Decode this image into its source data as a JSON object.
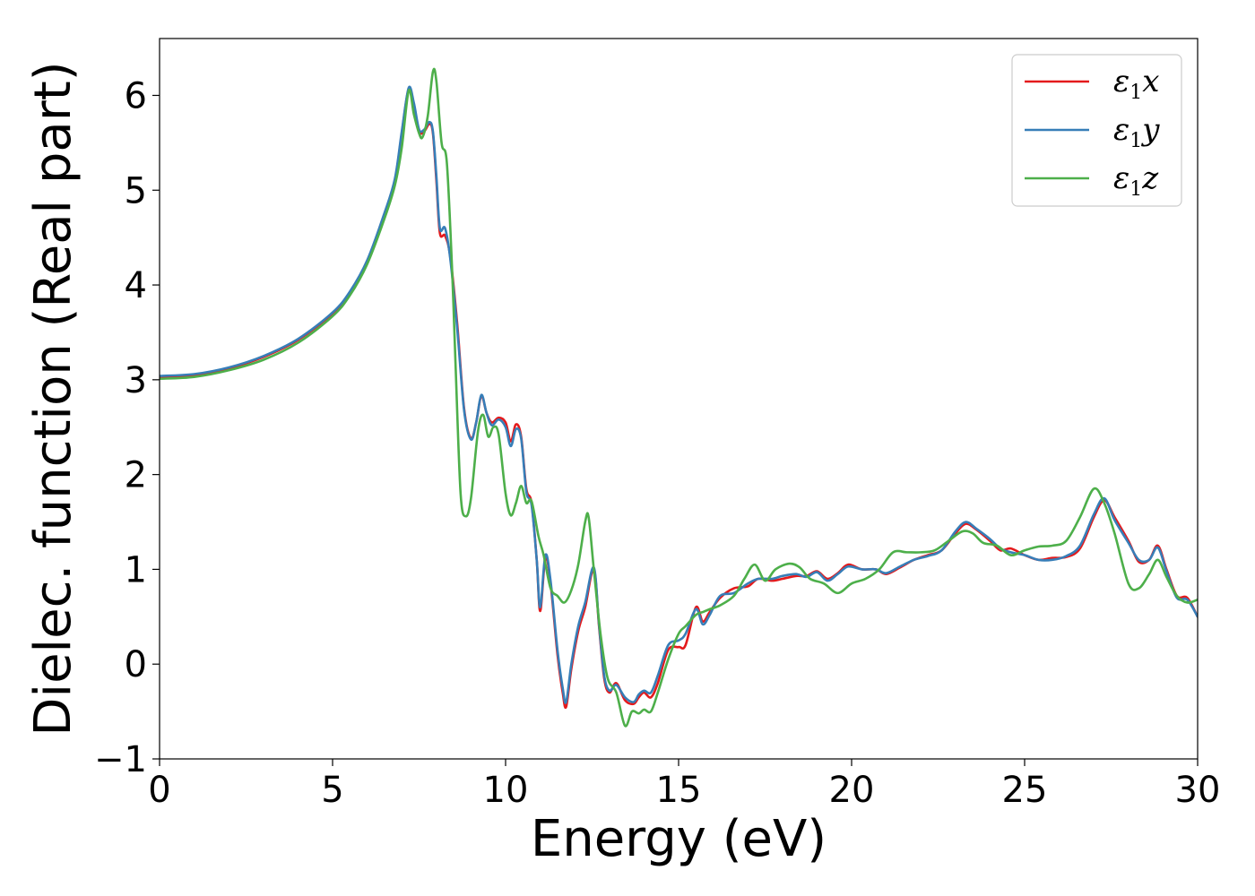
{
  "chart_data": {
    "type": "line",
    "title": "",
    "xlabel": "Energy (eV)",
    "ylabel": "Dielec. function (Real part)",
    "xlim": [
      0,
      30
    ],
    "ylim": [
      -1,
      6.6
    ],
    "xticks": [
      0,
      5,
      10,
      15,
      20,
      25,
      30
    ],
    "yticks": [
      -1,
      0,
      1,
      2,
      3,
      4,
      5,
      6
    ],
    "xtick_labels": [
      "0",
      "5",
      "10",
      "15",
      "20",
      "25",
      "30"
    ],
    "ytick_labels": [
      "−1",
      "0",
      "1",
      "2",
      "3",
      "4",
      "5",
      "6"
    ],
    "grid": false,
    "legend_position": "top-right",
    "series": [
      {
        "name": "ε",
        "sub": "1",
        "suffix": "x",
        "color": "#e41a1c",
        "points": [
          [
            0,
            3.03
          ],
          [
            1,
            3.05
          ],
          [
            2,
            3.12
          ],
          [
            3,
            3.24
          ],
          [
            4,
            3.42
          ],
          [
            5,
            3.7
          ],
          [
            5.5,
            3.92
          ],
          [
            6,
            4.25
          ],
          [
            6.5,
            4.75
          ],
          [
            6.8,
            5.1
          ],
          [
            7.0,
            5.6
          ],
          [
            7.2,
            6.07
          ],
          [
            7.35,
            5.9
          ],
          [
            7.5,
            5.62
          ],
          [
            7.65,
            5.62
          ],
          [
            7.8,
            5.7
          ],
          [
            7.9,
            5.6
          ],
          [
            8.0,
            5.1
          ],
          [
            8.1,
            4.55
          ],
          [
            8.25,
            4.52
          ],
          [
            8.4,
            4.3
          ],
          [
            8.6,
            3.6
          ],
          [
            8.8,
            2.7
          ],
          [
            9.0,
            2.38
          ],
          [
            9.15,
            2.55
          ],
          [
            9.3,
            2.83
          ],
          [
            9.45,
            2.65
          ],
          [
            9.6,
            2.55
          ],
          [
            9.8,
            2.6
          ],
          [
            10.0,
            2.55
          ],
          [
            10.15,
            2.35
          ],
          [
            10.3,
            2.53
          ],
          [
            10.45,
            2.4
          ],
          [
            10.6,
            1.85
          ],
          [
            10.75,
            1.7
          ],
          [
            10.9,
            1.1
          ],
          [
            11.0,
            0.56
          ],
          [
            11.15,
            1.12
          ],
          [
            11.3,
            0.85
          ],
          [
            11.5,
            0.1
          ],
          [
            11.65,
            -0.3
          ],
          [
            11.75,
            -0.45
          ],
          [
            11.9,
            -0.05
          ],
          [
            12.1,
            0.35
          ],
          [
            12.3,
            0.6
          ],
          [
            12.55,
            1.0
          ],
          [
            12.7,
            0.4
          ],
          [
            12.85,
            -0.15
          ],
          [
            13.0,
            -0.3
          ],
          [
            13.2,
            -0.2
          ],
          [
            13.45,
            -0.38
          ],
          [
            13.7,
            -0.42
          ],
          [
            13.85,
            -0.35
          ],
          [
            14.0,
            -0.3
          ],
          [
            14.2,
            -0.35
          ],
          [
            14.4,
            -0.2
          ],
          [
            14.7,
            0.15
          ],
          [
            15.0,
            0.18
          ],
          [
            15.2,
            0.2
          ],
          [
            15.5,
            0.6
          ],
          [
            15.7,
            0.45
          ],
          [
            15.9,
            0.55
          ],
          [
            16.2,
            0.7
          ],
          [
            16.6,
            0.8
          ],
          [
            17.0,
            0.82
          ],
          [
            17.3,
            0.9
          ],
          [
            17.7,
            0.88
          ],
          [
            18.0,
            0.9
          ],
          [
            18.4,
            0.93
          ],
          [
            18.7,
            0.93
          ],
          [
            19.0,
            0.98
          ],
          [
            19.3,
            0.9
          ],
          [
            19.6,
            0.96
          ],
          [
            19.9,
            1.05
          ],
          [
            20.3,
            1.0
          ],
          [
            20.7,
            1.0
          ],
          [
            21.0,
            0.95
          ],
          [
            21.4,
            1.02
          ],
          [
            21.8,
            1.1
          ],
          [
            22.2,
            1.15
          ],
          [
            22.6,
            1.2
          ],
          [
            23.0,
            1.38
          ],
          [
            23.3,
            1.48
          ],
          [
            23.6,
            1.42
          ],
          [
            24.0,
            1.3
          ],
          [
            24.3,
            1.2
          ],
          [
            24.6,
            1.22
          ],
          [
            25.0,
            1.15
          ],
          [
            25.4,
            1.1
          ],
          [
            25.8,
            1.12
          ],
          [
            26.2,
            1.13
          ],
          [
            26.6,
            1.22
          ],
          [
            27.0,
            1.55
          ],
          [
            27.3,
            1.73
          ],
          [
            27.6,
            1.55
          ],
          [
            28.0,
            1.3
          ],
          [
            28.3,
            1.08
          ],
          [
            28.6,
            1.1
          ],
          [
            28.85,
            1.25
          ],
          [
            29.1,
            1.0
          ],
          [
            29.4,
            0.72
          ],
          [
            29.7,
            0.7
          ],
          [
            30.0,
            0.5
          ]
        ]
      },
      {
        "name": "ε",
        "sub": "1",
        "suffix": "y",
        "color": "#377eb8",
        "points": [
          [
            0,
            3.04
          ],
          [
            1,
            3.06
          ],
          [
            2,
            3.13
          ],
          [
            3,
            3.25
          ],
          [
            4,
            3.43
          ],
          [
            5,
            3.71
          ],
          [
            5.5,
            3.93
          ],
          [
            6,
            4.26
          ],
          [
            6.5,
            4.76
          ],
          [
            6.8,
            5.12
          ],
          [
            7.0,
            5.62
          ],
          [
            7.2,
            6.08
          ],
          [
            7.35,
            5.92
          ],
          [
            7.5,
            5.64
          ],
          [
            7.65,
            5.64
          ],
          [
            7.8,
            5.72
          ],
          [
            7.9,
            5.62
          ],
          [
            8.0,
            5.15
          ],
          [
            8.1,
            4.6
          ],
          [
            8.25,
            4.6
          ],
          [
            8.4,
            4.28
          ],
          [
            8.6,
            3.55
          ],
          [
            8.8,
            2.68
          ],
          [
            9.0,
            2.37
          ],
          [
            9.15,
            2.55
          ],
          [
            9.3,
            2.84
          ],
          [
            9.45,
            2.65
          ],
          [
            9.6,
            2.52
          ],
          [
            9.8,
            2.58
          ],
          [
            10.0,
            2.5
          ],
          [
            10.15,
            2.3
          ],
          [
            10.3,
            2.48
          ],
          [
            10.45,
            2.38
          ],
          [
            10.6,
            1.82
          ],
          [
            10.75,
            1.68
          ],
          [
            10.9,
            1.1
          ],
          [
            11.0,
            0.6
          ],
          [
            11.15,
            1.15
          ],
          [
            11.3,
            0.88
          ],
          [
            11.5,
            0.15
          ],
          [
            11.65,
            -0.25
          ],
          [
            11.75,
            -0.4
          ],
          [
            11.9,
            0.0
          ],
          [
            12.1,
            0.4
          ],
          [
            12.3,
            0.65
          ],
          [
            12.55,
            1.02
          ],
          [
            12.7,
            0.42
          ],
          [
            12.85,
            -0.12
          ],
          [
            13.0,
            -0.28
          ],
          [
            13.2,
            -0.22
          ],
          [
            13.45,
            -0.35
          ],
          [
            13.7,
            -0.4
          ],
          [
            13.85,
            -0.32
          ],
          [
            14.0,
            -0.28
          ],
          [
            14.2,
            -0.3
          ],
          [
            14.4,
            -0.12
          ],
          [
            14.7,
            0.2
          ],
          [
            15.0,
            0.25
          ],
          [
            15.2,
            0.32
          ],
          [
            15.5,
            0.58
          ],
          [
            15.7,
            0.42
          ],
          [
            15.9,
            0.52
          ],
          [
            16.2,
            0.72
          ],
          [
            16.6,
            0.75
          ],
          [
            17.0,
            0.85
          ],
          [
            17.3,
            0.9
          ],
          [
            17.7,
            0.9
          ],
          [
            18.0,
            0.93
          ],
          [
            18.4,
            0.95
          ],
          [
            18.7,
            0.92
          ],
          [
            19.0,
            0.97
          ],
          [
            19.3,
            0.88
          ],
          [
            19.6,
            0.95
          ],
          [
            19.9,
            1.03
          ],
          [
            20.3,
            1.0
          ],
          [
            20.7,
            1.0
          ],
          [
            21.0,
            0.96
          ],
          [
            21.4,
            1.03
          ],
          [
            21.8,
            1.1
          ],
          [
            22.2,
            1.14
          ],
          [
            22.6,
            1.2
          ],
          [
            23.0,
            1.4
          ],
          [
            23.3,
            1.5
          ],
          [
            23.6,
            1.43
          ],
          [
            24.0,
            1.32
          ],
          [
            24.3,
            1.22
          ],
          [
            24.6,
            1.18
          ],
          [
            25.0,
            1.15
          ],
          [
            25.4,
            1.1
          ],
          [
            25.8,
            1.1
          ],
          [
            26.2,
            1.14
          ],
          [
            26.6,
            1.25
          ],
          [
            27.0,
            1.58
          ],
          [
            27.3,
            1.75
          ],
          [
            27.6,
            1.52
          ],
          [
            28.0,
            1.28
          ],
          [
            28.3,
            1.1
          ],
          [
            28.6,
            1.1
          ],
          [
            28.85,
            1.23
          ],
          [
            29.1,
            0.98
          ],
          [
            29.4,
            0.7
          ],
          [
            29.7,
            0.68
          ],
          [
            30.0,
            0.5
          ]
        ]
      },
      {
        "name": "ε",
        "sub": "1",
        "suffix": "z",
        "color": "#4daf4a",
        "points": [
          [
            0,
            3.01
          ],
          [
            1,
            3.03
          ],
          [
            2,
            3.1
          ],
          [
            3,
            3.21
          ],
          [
            4,
            3.39
          ],
          [
            5,
            3.67
          ],
          [
            5.5,
            3.89
          ],
          [
            6,
            4.22
          ],
          [
            6.5,
            4.7
          ],
          [
            6.8,
            5.05
          ],
          [
            7.0,
            5.45
          ],
          [
            7.2,
            6.05
          ],
          [
            7.35,
            5.8
          ],
          [
            7.5,
            5.6
          ],
          [
            7.6,
            5.56
          ],
          [
            7.75,
            5.78
          ],
          [
            7.9,
            6.25
          ],
          [
            8.0,
            6.15
          ],
          [
            8.15,
            5.5
          ],
          [
            8.3,
            5.3
          ],
          [
            8.45,
            4.2
          ],
          [
            8.55,
            3.2
          ],
          [
            8.7,
            1.8
          ],
          [
            8.85,
            1.56
          ],
          [
            9.0,
            1.75
          ],
          [
            9.2,
            2.45
          ],
          [
            9.35,
            2.63
          ],
          [
            9.5,
            2.4
          ],
          [
            9.65,
            2.5
          ],
          [
            9.8,
            2.42
          ],
          [
            10.0,
            1.8
          ],
          [
            10.15,
            1.57
          ],
          [
            10.3,
            1.7
          ],
          [
            10.45,
            1.88
          ],
          [
            10.6,
            1.7
          ],
          [
            10.75,
            1.72
          ],
          [
            10.95,
            1.35
          ],
          [
            11.1,
            1.15
          ],
          [
            11.3,
            0.8
          ],
          [
            11.5,
            0.72
          ],
          [
            11.7,
            0.65
          ],
          [
            11.9,
            0.78
          ],
          [
            12.1,
            1.05
          ],
          [
            12.3,
            1.5
          ],
          [
            12.4,
            1.55
          ],
          [
            12.55,
            1.0
          ],
          [
            12.75,
            0.3
          ],
          [
            12.95,
            -0.15
          ],
          [
            13.2,
            -0.3
          ],
          [
            13.45,
            -0.65
          ],
          [
            13.65,
            -0.5
          ],
          [
            13.85,
            -0.52
          ],
          [
            14.0,
            -0.48
          ],
          [
            14.2,
            -0.5
          ],
          [
            14.4,
            -0.3
          ],
          [
            14.7,
            0.05
          ],
          [
            15.0,
            0.32
          ],
          [
            15.2,
            0.4
          ],
          [
            15.5,
            0.52
          ],
          [
            15.7,
            0.55
          ],
          [
            15.9,
            0.58
          ],
          [
            16.2,
            0.62
          ],
          [
            16.6,
            0.72
          ],
          [
            16.9,
            0.9
          ],
          [
            17.2,
            1.05
          ],
          [
            17.5,
            0.88
          ],
          [
            17.8,
            1.0
          ],
          [
            18.2,
            1.06
          ],
          [
            18.5,
            1.02
          ],
          [
            18.8,
            0.9
          ],
          [
            19.2,
            0.85
          ],
          [
            19.6,
            0.75
          ],
          [
            20.0,
            0.85
          ],
          [
            20.4,
            0.9
          ],
          [
            20.8,
            1.0
          ],
          [
            21.2,
            1.18
          ],
          [
            21.6,
            1.18
          ],
          [
            22.0,
            1.18
          ],
          [
            22.4,
            1.2
          ],
          [
            22.8,
            1.3
          ],
          [
            23.2,
            1.4
          ],
          [
            23.5,
            1.38
          ],
          [
            23.8,
            1.28
          ],
          [
            24.2,
            1.25
          ],
          [
            24.6,
            1.15
          ],
          [
            25.0,
            1.2
          ],
          [
            25.4,
            1.24
          ],
          [
            25.8,
            1.25
          ],
          [
            26.2,
            1.3
          ],
          [
            26.6,
            1.55
          ],
          [
            27.0,
            1.85
          ],
          [
            27.3,
            1.7
          ],
          [
            27.6,
            1.38
          ],
          [
            28.0,
            0.85
          ],
          [
            28.3,
            0.8
          ],
          [
            28.6,
            0.95
          ],
          [
            28.85,
            1.1
          ],
          [
            29.1,
            0.92
          ],
          [
            29.4,
            0.72
          ],
          [
            29.7,
            0.65
          ],
          [
            30.0,
            0.68
          ]
        ]
      }
    ]
  }
}
